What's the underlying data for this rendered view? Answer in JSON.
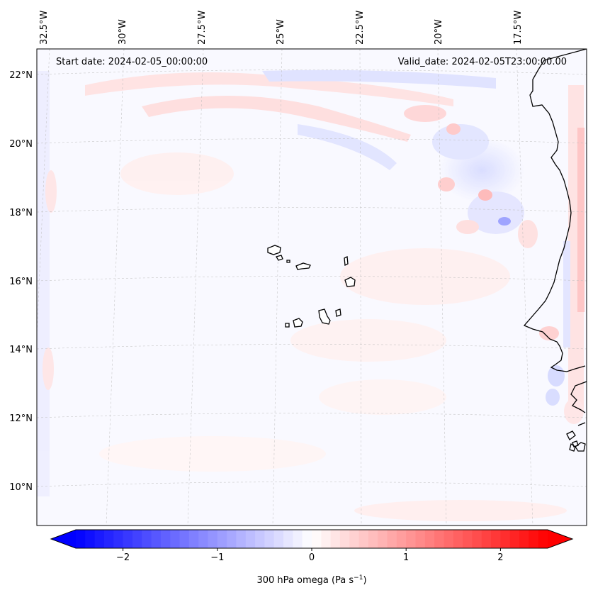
{
  "map": {
    "start_label": "Start date: 2024-02-05_00:00:00",
    "valid_label": "Valid_date: 2024-02-05T23:00:00.00",
    "lon_labels": [
      "32.5°W",
      "30°W",
      "27.5°W",
      "25°W",
      "22.5°W",
      "20°W",
      "17.5°W"
    ],
    "lat_labels": [
      "22°N",
      "20°N",
      "18°N",
      "16°N",
      "14°N",
      "12°N",
      "10°N"
    ],
    "field": "300 hPa omega",
    "units_label": "300 hPa omega (Pa s",
    "units_exp": "−1",
    "units_close": ")"
  },
  "colorbar": {
    "ticks": [
      "−2",
      "−1",
      "0",
      "1",
      "2"
    ],
    "tick_values": [
      -2,
      -1,
      0,
      1,
      2
    ],
    "range": [
      -2.5,
      2.5
    ],
    "colormap": "bwr",
    "low_color": "#0000ff",
    "mid_color": "#ffffff",
    "high_color": "#ff0000"
  }
}
